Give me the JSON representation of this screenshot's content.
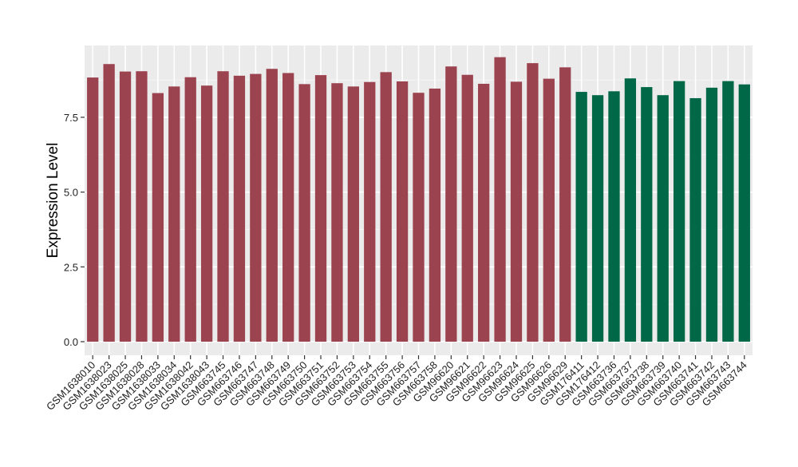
{
  "chart_data": {
    "type": "bar",
    "title": "",
    "xlabel": "",
    "ylabel": "Expression Level",
    "ylim": [
      0,
      9.9
    ],
    "yticks": [
      0.0,
      2.5,
      5.0,
      7.5
    ],
    "ytick_labels": [
      "0.0",
      "2.5",
      "5.0",
      "7.5"
    ],
    "grid": true,
    "legend": "none",
    "colors": {
      "group1": "#9c4350",
      "group2": "#006846",
      "panel_bg": "#ebebeb",
      "grid_major": "#ffffff",
      "grid_minor": "#f5f5f5"
    },
    "categories": [
      "GSM1638010",
      "GSM1638023",
      "GSM1638025",
      "GSM1638028",
      "GSM1638033",
      "GSM1638034",
      "GSM1638042",
      "GSM1638043",
      "GSM663745",
      "GSM663746",
      "GSM663747",
      "GSM663748",
      "GSM663749",
      "GSM663750",
      "GSM663751",
      "GSM663752",
      "GSM663753",
      "GSM663754",
      "GSM663755",
      "GSM663756",
      "GSM663757",
      "GSM663758",
      "GSM96620",
      "GSM96621",
      "GSM96622",
      "GSM96623",
      "GSM96624",
      "GSM96625",
      "GSM96626",
      "GSM96629",
      "GSM176411",
      "GSM176412",
      "GSM663736",
      "GSM663737",
      "GSM663738",
      "GSM663739",
      "GSM663740",
      "GSM663741",
      "GSM663742",
      "GSM663743",
      "GSM663744"
    ],
    "values": [
      8.83,
      9.28,
      9.03,
      9.04,
      8.31,
      8.53,
      8.84,
      8.56,
      9.04,
      8.89,
      8.95,
      9.12,
      8.98,
      8.61,
      8.91,
      8.64,
      8.53,
      8.68,
      9.01,
      8.7,
      8.32,
      8.46,
      9.2,
      8.92,
      8.62,
      9.51,
      8.69,
      9.31,
      8.79,
      9.17,
      8.35,
      8.24,
      8.37,
      8.8,
      8.51,
      8.24,
      8.71,
      8.14,
      8.49,
      8.71,
      8.6
    ],
    "groups": [
      "group1",
      "group1",
      "group1",
      "group1",
      "group1",
      "group1",
      "group1",
      "group1",
      "group1",
      "group1",
      "group1",
      "group1",
      "group1",
      "group1",
      "group1",
      "group1",
      "group1",
      "group1",
      "group1",
      "group1",
      "group1",
      "group1",
      "group1",
      "group1",
      "group1",
      "group1",
      "group1",
      "group1",
      "group1",
      "group1",
      "group2",
      "group2",
      "group2",
      "group2",
      "group2",
      "group2",
      "group2",
      "group2",
      "group2",
      "group2",
      "group2"
    ]
  }
}
